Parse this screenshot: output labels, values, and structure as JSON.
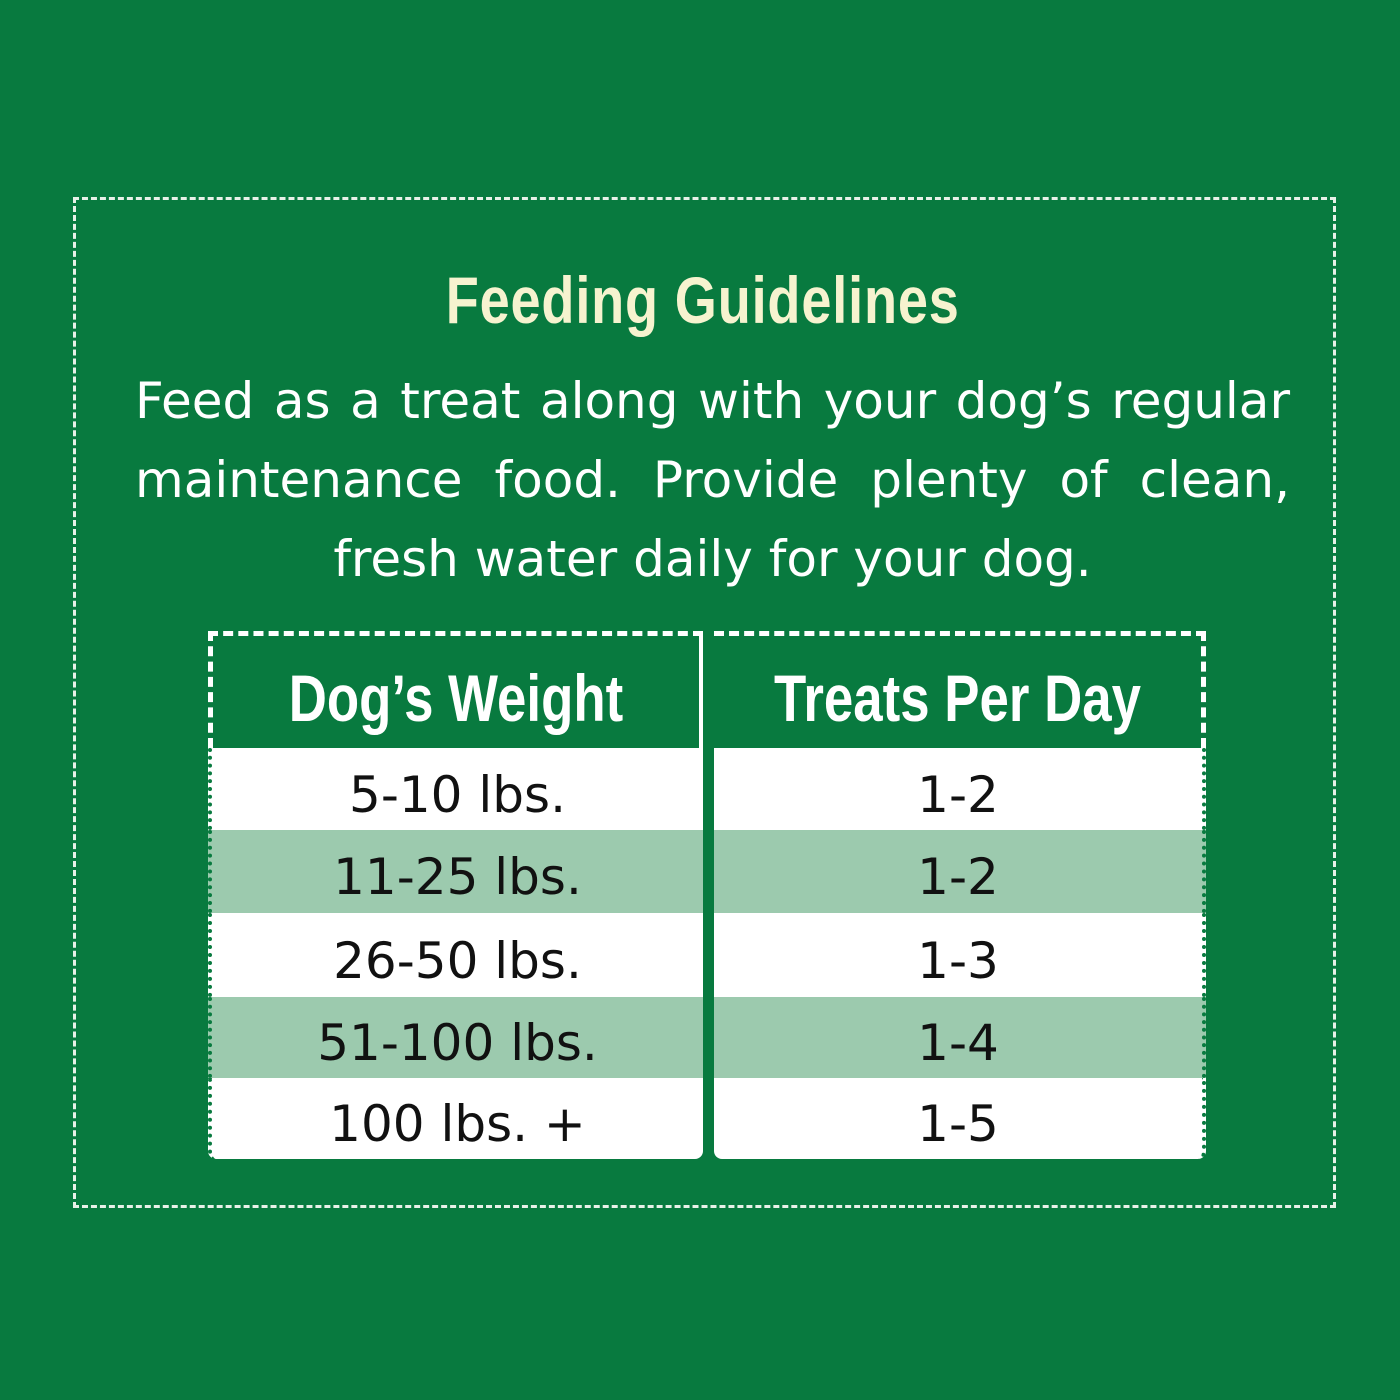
{
  "title": "Feeding Guidelines",
  "intro": {
    "line1": "Feed as a treat along with your dog’s regular",
    "line2": "maintenance food. Provide plenty of clean,",
    "line3": "fresh water daily for your dog."
  },
  "table": {
    "headers": [
      "Dog’s Weight",
      "Treats Per Day"
    ],
    "rows": [
      [
        "5-10 lbs.",
        "1-2"
      ],
      [
        "11-25 lbs.",
        "1-2"
      ],
      [
        "26-50 lbs.",
        "1-3"
      ],
      [
        "51-100 lbs.",
        "1-4"
      ],
      [
        "100 lbs. +",
        "1-5"
      ]
    ]
  },
  "colors": {
    "background": "#087a3f",
    "title": "#f6f3cf",
    "row_alt": "#9ccaae",
    "row": "#ffffff"
  }
}
